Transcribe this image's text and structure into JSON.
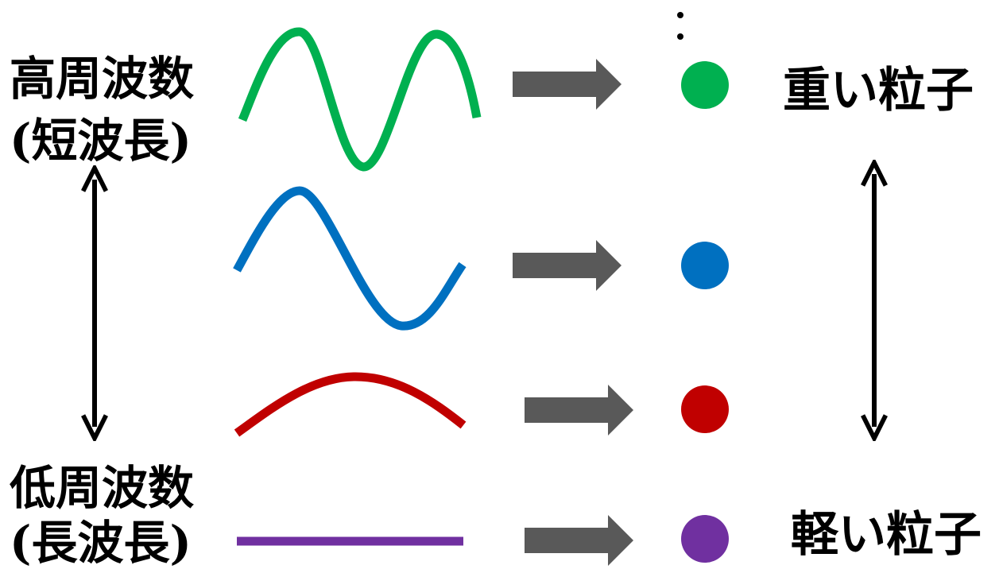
{
  "labels": {
    "high_freq": "高周波数",
    "short_wavelength": "(短波長)",
    "low_freq": "低周波数",
    "long_wavelength": "(長波長)",
    "heavy_particle": "重い粒子",
    "light_particle": "軽い粒子"
  },
  "continuation_mark": "⋮",
  "rows": [
    {
      "name": "green",
      "color": "#00b050"
    },
    {
      "name": "blue",
      "color": "#0070c0"
    },
    {
      "name": "red",
      "color": "#c00000"
    },
    {
      "name": "purple",
      "color": "#7030a0"
    }
  ],
  "arrow_color": "#595959"
}
